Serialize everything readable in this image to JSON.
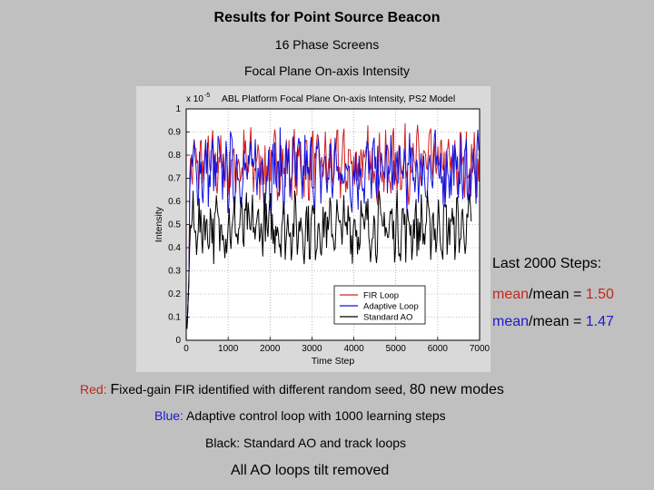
{
  "header": {
    "title": "Results for Point Source Beacon",
    "subtitle1": "16 Phase Screens",
    "subtitle2": "Focal Plane On-axis Intensity"
  },
  "side_panel": {
    "heading": "Last 2000 Steps:",
    "line1_prefix": "mean",
    "line1_mid": "/mean = ",
    "line1_value": "1.50",
    "line2_prefix": "mean",
    "line2_mid": "/mean = ",
    "line2_value": "1.47"
  },
  "descriptions": {
    "red_label": "Red: ",
    "red_initial": "F",
    "red_text": "ixed-gain FIR identified with different random seed, ",
    "red_emph": "80 new modes",
    "blue_label": "Blue: ",
    "blue_text": "Adaptive control loop with 1000 learning steps",
    "black_text": "Black: Standard AO and track loops",
    "footer": "All AO loops tilt removed"
  },
  "colors": {
    "red": "#c0281e",
    "blue": "#1a1ad0",
    "black": "#000000"
  },
  "chart_data": {
    "type": "line",
    "title": "ABL Platform Focal Plane On-axis Intensity, PS2 Model",
    "xlabel": "Time Step",
    "ylabel": "Intensity",
    "y_multiplier": "x 10",
    "y_exponent": "-5",
    "xlim": [
      0,
      7000
    ],
    "ylim": [
      0,
      1
    ],
    "xticks": [
      "0",
      "1000",
      "2000",
      "3000",
      "4000",
      "5000",
      "6000",
      "7000"
    ],
    "yticks": [
      "0",
      "0.1",
      "0.2",
      "0.3",
      "0.4",
      "0.5",
      "0.6",
      "0.7",
      "0.8",
      "0.9",
      "1"
    ],
    "grid": true,
    "legend": "bottom-right",
    "series": [
      {
        "name": "FIR Loop",
        "color": "#d02020",
        "mean": 0.76,
        "amplitude": 0.12,
        "x_start": 20,
        "x_end": 7000
      },
      {
        "name": "Adaptive Loop",
        "color": "#1010e0",
        "mean": 0.73,
        "amplitude": 0.13,
        "x_start": 20,
        "x_end": 7000
      },
      {
        "name": "Standard AO",
        "color": "#000000",
        "mean": 0.49,
        "amplitude": 0.11,
        "x_start": 20,
        "x_end": 6800
      }
    ]
  }
}
